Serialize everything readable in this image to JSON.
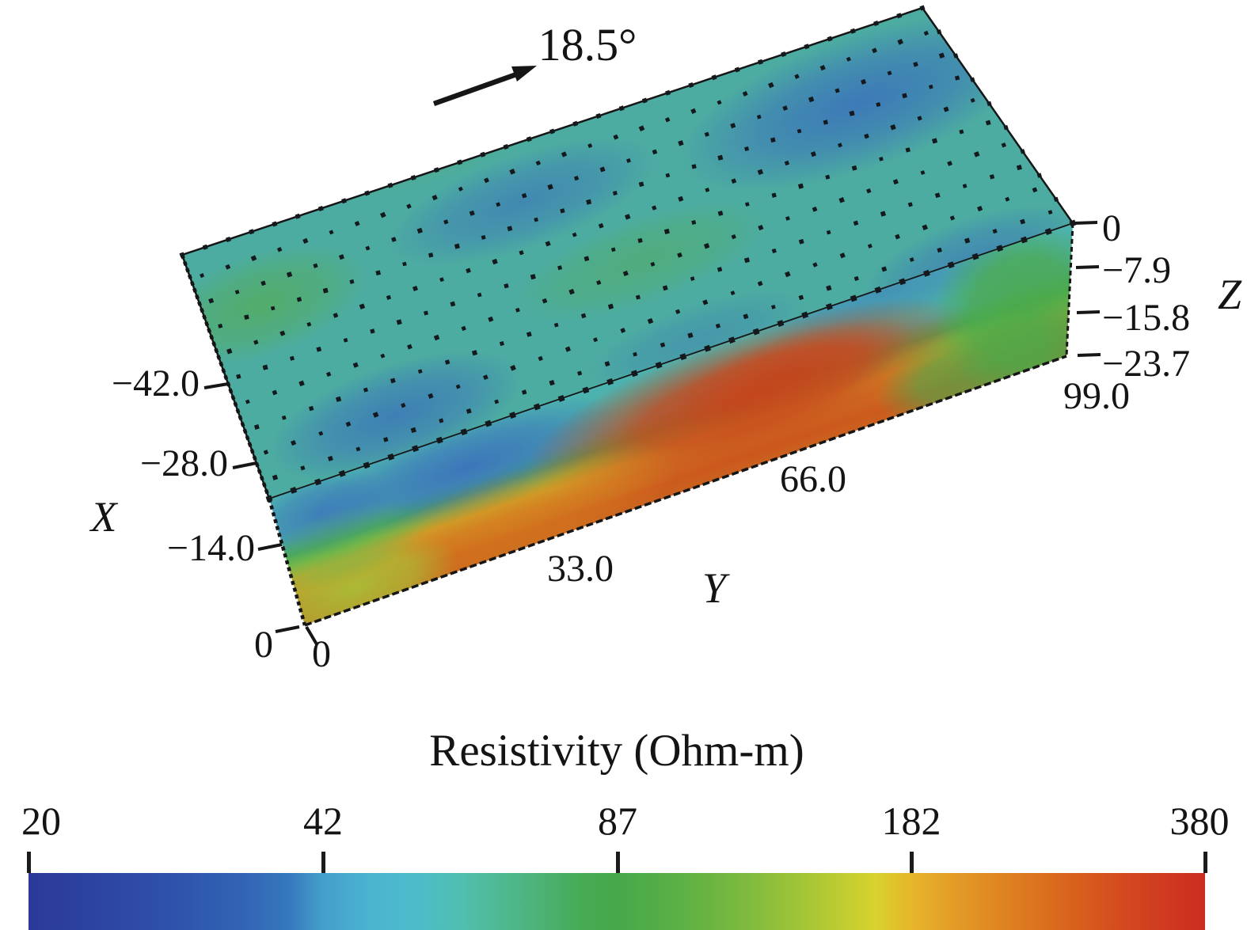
{
  "figure": {
    "orientation_arrow": {
      "label": "18.5°"
    },
    "axis_x": {
      "label": "X",
      "ticks": [
        "−42.0",
        "−28.0",
        "−14.0",
        "0"
      ]
    },
    "axis_y": {
      "label": "Y",
      "ticks": [
        "0",
        "33.0",
        "66.0",
        "99.0"
      ]
    },
    "axis_z": {
      "label": "Z",
      "ticks": [
        "0",
        "−7.9",
        "−15.8",
        "−23.7"
      ]
    },
    "colorbar": {
      "title": "Resistivity (Ohm-m)",
      "tick_labels": [
        "20",
        "42",
        "87",
        "182",
        "380"
      ]
    }
  },
  "chart_data": {
    "type": "heatmap",
    "subtype": "3d-resistivity-block-model",
    "title": "Resistivity (Ohm-m)",
    "orientation_arrow_deg": 18.5,
    "x_axis": {
      "label": "X",
      "ticks": [
        -42.0,
        -28.0,
        -14.0,
        0
      ]
    },
    "y_axis": {
      "label": "Y",
      "ticks": [
        0,
        33.0,
        66.0,
        99.0
      ]
    },
    "z_axis": {
      "label": "Z",
      "ticks": [
        0,
        -7.9,
        -15.8,
        -23.7
      ]
    },
    "colorbar": {
      "title": "Resistivity (Ohm-m)",
      "scale": "log",
      "min": 20,
      "max": 380,
      "ticks": [
        20,
        42,
        87,
        182,
        380
      ],
      "stops": [
        {
          "value": 20,
          "color": "#2b3a99"
        },
        {
          "value": 42,
          "color": "#449fcb"
        },
        {
          "value": 87,
          "color": "#45a84a"
        },
        {
          "value": 182,
          "color": "#e6b62b"
        },
        {
          "value": 380,
          "color": "#cc2c21"
        }
      ]
    },
    "surface_electrode_grid": {
      "rows": 9,
      "dots_per_row": 29,
      "marker": "small black squares"
    },
    "regions": [
      {
        "where": "top surface (z=0)",
        "approx_resistivity_ohm_m": "30-60",
        "appearance": "teal with blue conductive patches and green spots"
      },
      {
        "where": "front section, upper layer z 0 to -8",
        "approx_resistivity_ohm_m": "25-40",
        "appearance": "teal; strong blue conductive zone near y 15-35"
      },
      {
        "where": "front section, middle band",
        "approx_resistivity_ohm_m": "80",
        "appearance": "green band dipping toward y=0"
      },
      {
        "where": "front section, deep central body y 20-80, z below -12",
        "approx_resistivity_ohm_m": "180-380",
        "appearance": "orange-red resistive body"
      },
      {
        "where": "front section near y=99 (right end)",
        "approx_resistivity_ohm_m": "80",
        "appearance": "green to full depth"
      },
      {
        "where": "front section bottom-left corner near y=0",
        "approx_resistivity_ohm_m": "100-150",
        "appearance": "yellow-green"
      }
    ]
  }
}
